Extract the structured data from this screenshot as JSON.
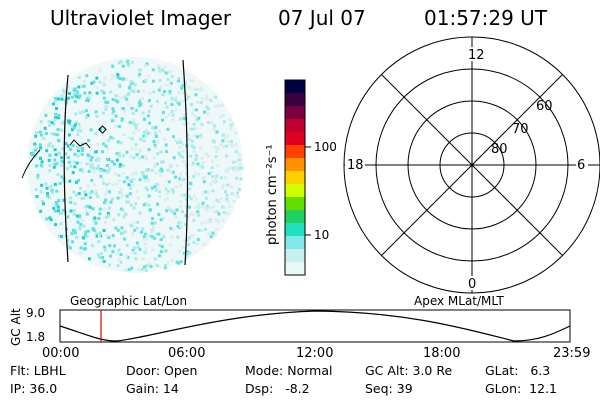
{
  "header": {
    "title": "Ultraviolet Imager",
    "date": "07 Jul 07",
    "time": "01:57:29 UT"
  },
  "colorbar": {
    "unit_label": "photon cm⁻²s⁻¹",
    "ticks": [
      "100",
      "10"
    ],
    "colors": [
      "#000040",
      "#3a0040",
      "#7a0040",
      "#c00030",
      "#e00020",
      "#ff4000",
      "#ff9000",
      "#ffd000",
      "#d0ff00",
      "#60e000",
      "#20d060",
      "#20e0c0",
      "#80e8e8",
      "#c8f0f0",
      "#e8f8f8"
    ]
  },
  "polar": {
    "mlt_labels": {
      "top": "12",
      "bottom": "0",
      "left": "18",
      "right": "6"
    },
    "lat_labels": [
      "60",
      "70",
      "80"
    ]
  },
  "bottom_plot": {
    "ylabel": "GC Alt",
    "yticks": [
      "9.0",
      "1.8"
    ],
    "left_title": "Geographic Lat/Lon",
    "right_title": "Apex MLat/MLT",
    "xticks": [
      "00:00",
      "06:00",
      "12:00",
      "18:00",
      "23:59"
    ]
  },
  "info": {
    "row1": {
      "flt": "Flt: LBHL",
      "door": "Door: Open",
      "mode": "Mode: Normal",
      "gcalt": "GC Alt: 3.0 Re",
      "glat": "GLat:   6.3"
    },
    "row2": {
      "ip": "IP: 36.0",
      "gain": "Gain: 14",
      "dsp": "Dsp:   -8.2",
      "seq": "Seq: 39",
      "glon": "GLon:  12.1"
    }
  }
}
